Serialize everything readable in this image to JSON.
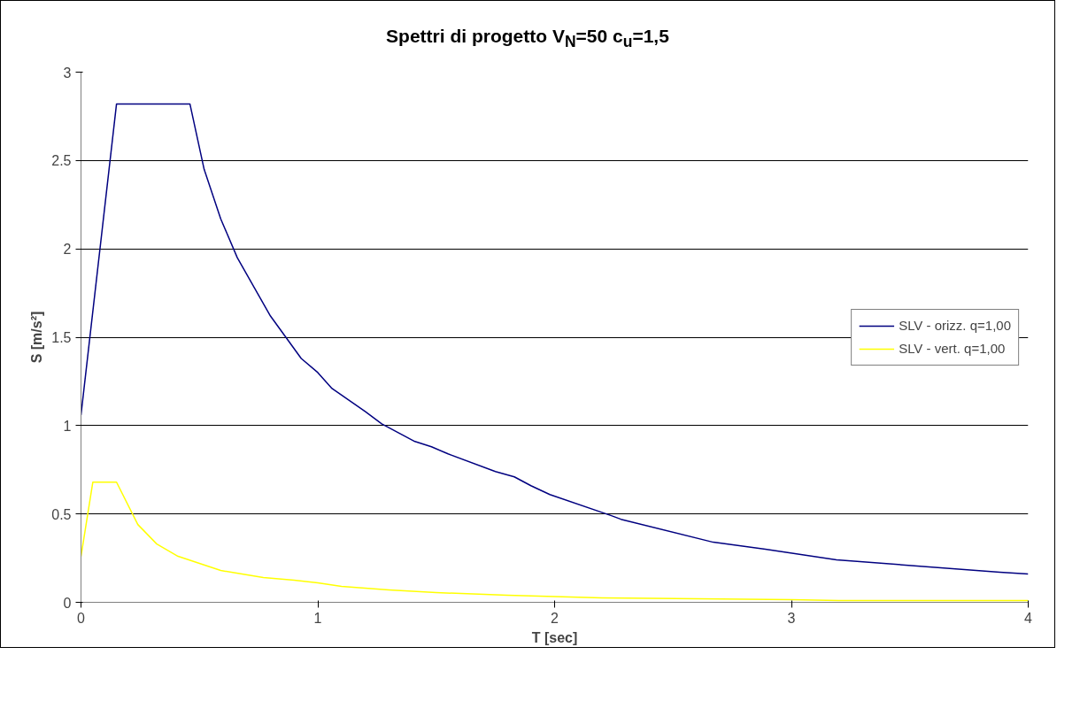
{
  "chart_data": {
    "type": "line",
    "title": "Spettri di progetto V$_{N}$=50 c$_{u}$=1,5",
    "xlabel": "T [sec]",
    "ylabel": "S [m/s²]",
    "xlim": [
      0,
      4
    ],
    "xticks": [
      0,
      1,
      2,
      3,
      4
    ],
    "ylim": [
      0,
      3
    ],
    "yticks": [
      0,
      0.5,
      1,
      1.5,
      2,
      2.5,
      3
    ],
    "grid": "y",
    "legend": "right",
    "marker": "none",
    "line_style": "solid",
    "series": [
      {
        "name": "SLV - orizz. q=1,00",
        "color": "#000080",
        "x": [
          0,
          0.15,
          0.46,
          0.52,
          0.59,
          0.66,
          0.8,
          0.93,
          1.0,
          1.06,
          1.2,
          1.27,
          1.34,
          1.41,
          1.48,
          1.55,
          1.75,
          1.83,
          1.9,
          1.98,
          2.24,
          2.28,
          2.67,
          2.89,
          2.99,
          3.19,
          3.88,
          4
        ],
        "values": [
          1.06,
          2.82,
          2.82,
          2.45,
          2.17,
          1.95,
          1.62,
          1.38,
          1.3,
          1.21,
          1.08,
          1.01,
          0.96,
          0.91,
          0.88,
          0.84,
          0.74,
          0.71,
          0.66,
          0.61,
          0.49,
          0.47,
          0.34,
          0.3,
          0.28,
          0.24,
          0.17,
          0.16
        ]
      },
      {
        "name": "SLV - vert. q=1,00",
        "color": "#ffff00",
        "x": [
          0,
          0.05,
          0.15,
          0.24,
          0.32,
          0.41,
          0.5,
          0.59,
          0.68,
          0.77,
          0.9,
          1.0,
          1.1,
          1.3,
          1.5,
          1.8,
          2.2,
          3.0,
          3.2,
          4
        ],
        "values": [
          0.26,
          0.68,
          0.68,
          0.44,
          0.33,
          0.26,
          0.22,
          0.18,
          0.16,
          0.14,
          0.125,
          0.11,
          0.09,
          0.07,
          0.055,
          0.04,
          0.025,
          0.015,
          0.01,
          0.01
        ]
      }
    ]
  }
}
